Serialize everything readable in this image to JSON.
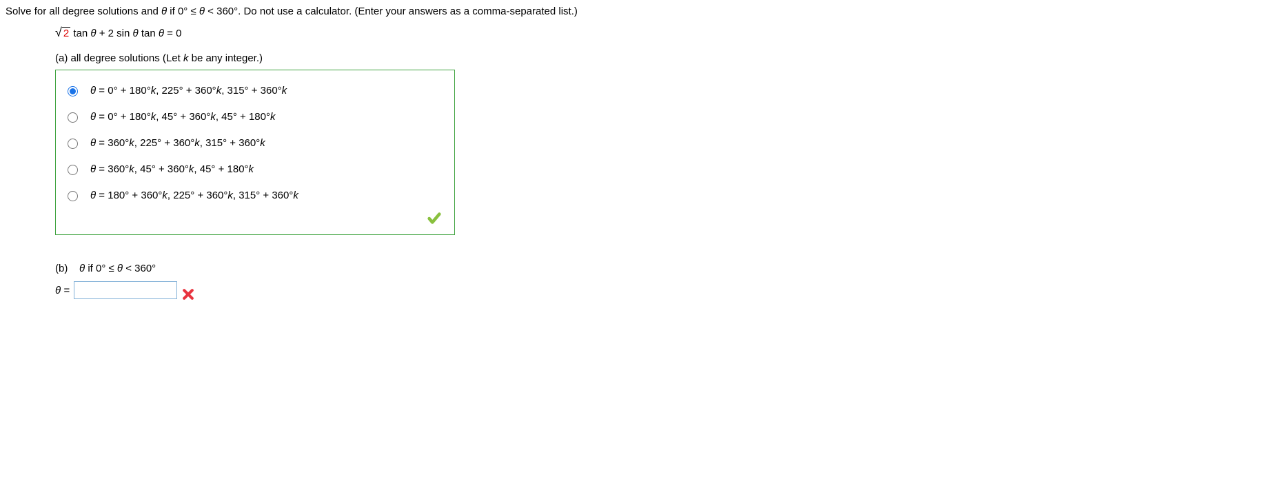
{
  "question": {
    "prompt_prefix": "Solve for all degree solutions and ",
    "theta": "θ",
    "prompt_cond": " if 0° ≤ ",
    "prompt_cond2": " < 360°. Do not use a calculator. (Enter your answers as a comma-separated list.)",
    "radicand": "2",
    "eq_rest": " tan θ + 2 sin θ tan θ = 0"
  },
  "part_a": {
    "label": "(a) all degree solutions (Let ",
    "k": "k",
    "label_end": " be any integer.)",
    "options": [
      {
        "text": "θ = 0° + 180°k, 225° + 360°k, 315° + 360°k",
        "selected": true
      },
      {
        "text": "θ = 0° + 180°k, 45° + 360°k, 45° + 180°k",
        "selected": false
      },
      {
        "text": "θ = 360°k, 225° + 360°k, 315° + 360°k",
        "selected": false
      },
      {
        "text": "θ = 360°k, 45° + 360°k, 45° + 180°k",
        "selected": false
      },
      {
        "text": "θ = 180° + 360°k, 225° + 360°k, 315° + 360°k",
        "selected": false
      }
    ]
  },
  "part_b": {
    "label_prefix": "(b)",
    "label_cond": "θ if 0° ≤ θ < 360°",
    "theta_eq": "θ =",
    "input_value": ""
  },
  "colors": {
    "correct_border": "#3fa33f",
    "radicand": "#dd0000",
    "input_border": "#7faed6",
    "check_fill": "#89c03e",
    "cross_fill": "#e8343f"
  }
}
